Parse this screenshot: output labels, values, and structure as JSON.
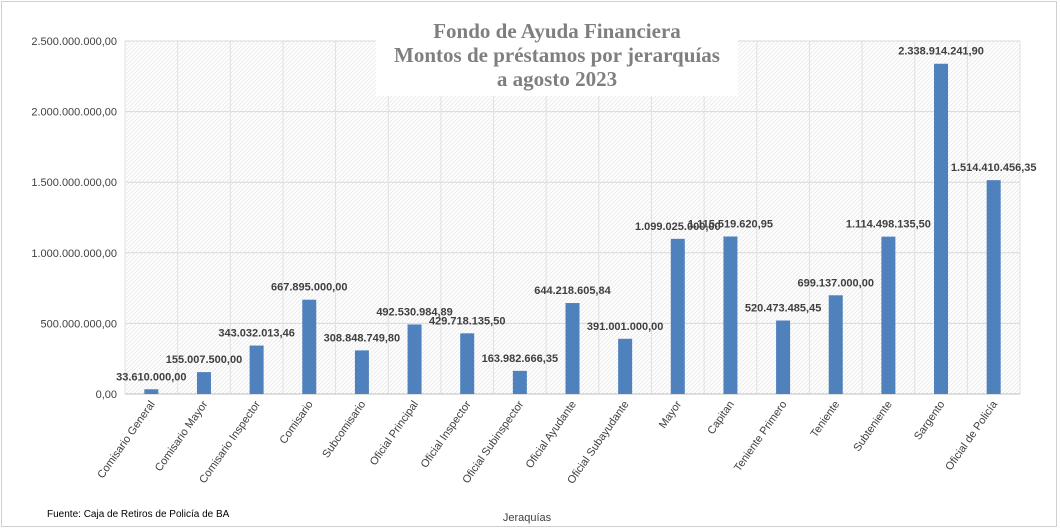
{
  "chart_data": {
    "type": "bar",
    "title_lines": [
      "Fondo de Ayuda Financiera",
      "Montos de préstamos por jerarquías",
      "a agosto 2023"
    ],
    "xlabel": "Jeraquías",
    "ylabel": "",
    "source": "Fuente: Caja de Retiros de Policía de BA",
    "categories": [
      "Comisario General",
      "Comisario Mayor",
      "Comisario Inspector",
      "Comisario",
      "Subcomisario",
      "Oficial Principal",
      "Oficial Inspector",
      "Oficial Subinspector",
      "Oficial Ayudante",
      "Oficial Subayudante",
      "Mayor",
      "Capitan",
      "Teniente Primero",
      "Teniente",
      "Subteniente",
      "Sargento",
      "Oficial de Policía"
    ],
    "values": [
      33610000.0,
      155007500.0,
      343032013.46,
      667895000.0,
      308848749.8,
      492530984.89,
      429718135.5,
      163982666.35,
      644218605.84,
      391001000.0,
      1099025000.0,
      1115519620.95,
      520473485.45,
      699137000.0,
      1114498135.5,
      2338914241.9,
      1514410456.35
    ],
    "data_labels": [
      "33.610.000,00",
      "155.007.500,00",
      "343.032.013,46",
      "667.895.000,00",
      "308.848.749,80",
      "492.530.984,89",
      "429.718.135,50",
      "163.982.666,35",
      "644.218.605,84",
      "391.001.000,00",
      "1.099.025.000,00",
      "1.115.519.620,95",
      "520.473.485,45",
      "699.137.000,00",
      "1.114.498.135,50",
      "2.338.914.241,90",
      "1.514.410.456,35"
    ],
    "y_ticks": [
      0,
      500000000,
      1000000000,
      1500000000,
      2000000000,
      2500000000
    ],
    "y_tick_labels": [
      "0,00",
      "500.000.000,00",
      "1.000.000.000,00",
      "1.500.000.000,00",
      "2.000.000.000,00",
      "2.500.000.000,00"
    ],
    "ylim": [
      0,
      2500000000
    ],
    "grid": true,
    "legend": "none",
    "bar_color": "#4f81bd"
  }
}
